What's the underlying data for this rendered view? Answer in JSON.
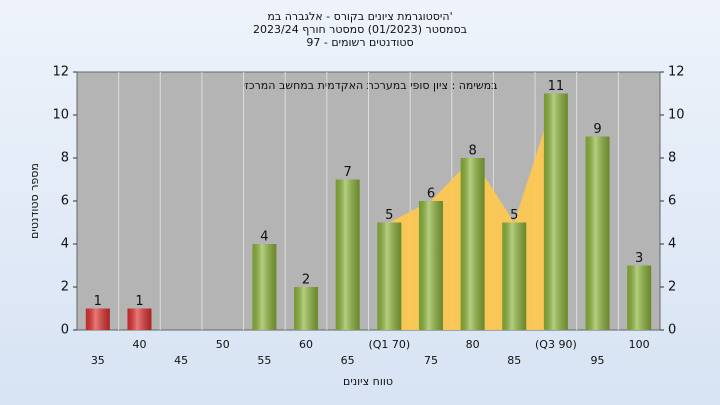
{
  "chart_data": {
    "type": "bar",
    "title": [
      "היסטוגרמת ציונים בקורס - אלגברה במ'",
      "בסמסטר  (01/2023)  סמסטר חורף  2023/24",
      "סטודנטים רשומים - 97"
    ],
    "annotation": "במשימה : ציון סופי במערכת האקדמית במחשב המרכזי",
    "y_label": "מספר סטודנטים",
    "x_label": "טווח ציונים",
    "categories": [
      "35",
      "40",
      "45",
      "50",
      "55",
      "60",
      "65",
      "(Q1 70)",
      "75",
      "80",
      "85",
      "(Q3 90)",
      "95",
      "100"
    ],
    "values": [
      1,
      1,
      0,
      0,
      4,
      2,
      7,
      5,
      6,
      8,
      5,
      11,
      9,
      3
    ],
    "colors": [
      "#e0302f",
      "#e0302f",
      "#8db53a",
      "#8db53a",
      "#8db53a",
      "#8db53a",
      "#8db53a",
      "#8db53a",
      "#8db53a",
      "#8db53a",
      "#8db53a",
      "#8db53a",
      "#8db53a",
      "#8db53a"
    ],
    "area_color": "#ffc94d",
    "ylim": [
      0,
      12
    ],
    "yticks": [
      0,
      2,
      4,
      6,
      8,
      10,
      12
    ],
    "grid": true
  }
}
